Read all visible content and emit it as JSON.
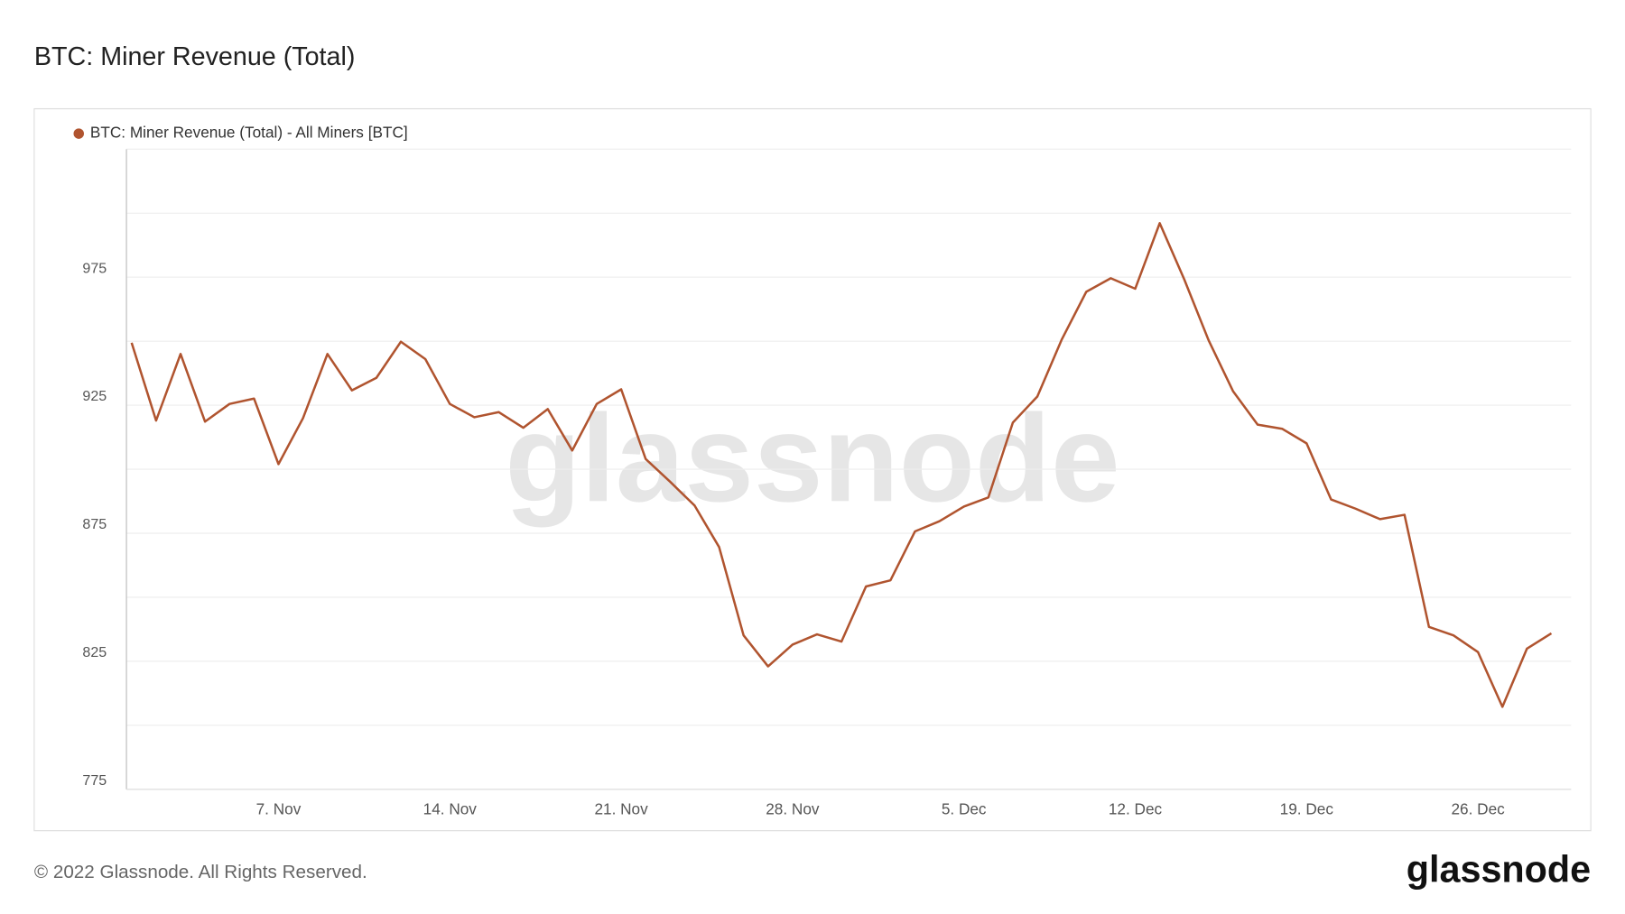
{
  "chart_data": {
    "type": "line",
    "title": "BTC: Miner Revenue (Total)",
    "categories": [
      null,
      null,
      null,
      null,
      null,
      null,
      "7. Nov",
      null,
      null,
      null,
      null,
      null,
      null,
      "14. Nov",
      null,
      null,
      null,
      null,
      null,
      null,
      "21. Nov",
      null,
      null,
      null,
      null,
      null,
      null,
      "28. Nov",
      null,
      null,
      null,
      null,
      null,
      null,
      "5. Dec",
      null,
      null,
      null,
      null,
      null,
      null,
      "12. Dec",
      null,
      null,
      null,
      null,
      null,
      null,
      "19. Dec",
      null,
      null,
      null,
      null,
      null,
      null,
      "26. Dec",
      null,
      null,
      null
    ],
    "series": [
      {
        "name": "BTC: Miner Revenue (Total) - All Miners [BTC]",
        "color": "#b0542f",
        "values": [
          949.4,
          919,
          945,
          918.6,
          925.5,
          927.6,
          902,
          919.9,
          945,
          930.8,
          935.7,
          949.8,
          943,
          925.5,
          920.3,
          922.3,
          916.2,
          923.5,
          907.3,
          925.5,
          931.2,
          904,
          895.1,
          885.8,
          869.6,
          835.1,
          823,
          831.5,
          835.5,
          832.7,
          854.2,
          856.6,
          875.7,
          879.7,
          885.4,
          889,
          918.2,
          928.4,
          950.7,
          969.3,
          974.6,
          970.5,
          996.1,
          974.2,
          950.3,
          930.4,
          917.4,
          915.8,
          910.1,
          888.2,
          884.6,
          880.5,
          882.2,
          838.4,
          835.1,
          828.6,
          807.2,
          829.9,
          835.9
        ]
      }
    ],
    "ylim": [
      775,
      1025
    ],
    "yticks": [
      775,
      825,
      875,
      925,
      975
    ],
    "minor_yticks": [
      800,
      850,
      900,
      950,
      1000,
      1025
    ],
    "grid": true,
    "legend": "top-left",
    "watermark": "glassnode",
    "footer": "© 2022 Glassnode. All Rights Reserved.",
    "logo": "glassnode"
  }
}
